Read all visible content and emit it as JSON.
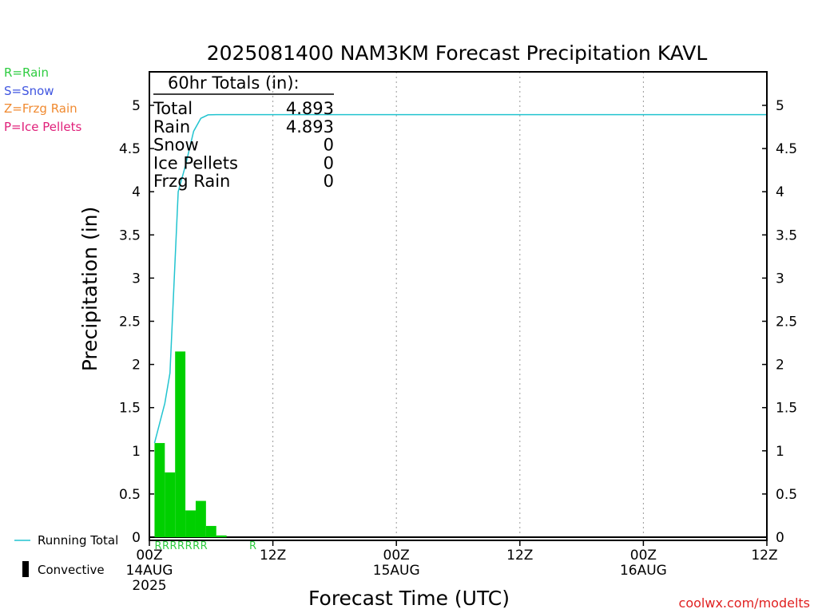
{
  "chart_data": {
    "type": "bar",
    "title": "2025081400 NAM3KM Forecast Precipitation KAVL",
    "xlabel": "Forecast Time (UTC)",
    "ylabel": "Precipitation (in)",
    "ylim": [
      0,
      5.3
    ],
    "xlim_hours": [
      0,
      60
    ],
    "y_ticks": [
      "0",
      "0.5",
      "1",
      "1.5",
      "2",
      "2.5",
      "3",
      "3.5",
      "4",
      "4.5",
      "5"
    ],
    "x_ticks": [
      {
        "hour": 0,
        "label": "00Z",
        "day": "14AUG",
        "year": "2025"
      },
      {
        "hour": 12,
        "label": "12Z",
        "day": "",
        "year": ""
      },
      {
        "hour": 24,
        "label": "00Z",
        "day": "15AUG",
        "year": ""
      },
      {
        "hour": 36,
        "label": "12Z",
        "day": "",
        "year": ""
      },
      {
        "hour": 48,
        "label": "00Z",
        "day": "16AUG",
        "year": ""
      },
      {
        "hour": 60,
        "label": "12Z",
        "day": "",
        "year": ""
      }
    ],
    "grid": "vertical dotted at 12-hour ticks",
    "ptype_legend": [
      {
        "label": "R=Rain",
        "color": "#2ecc40"
      },
      {
        "label": "S=Snow",
        "color": "#4056e0"
      },
      {
        "label": "Z=Frzg Rain",
        "color": "#f08a30"
      },
      {
        "label": "P=Ice Pellets",
        "color": "#e0207a"
      }
    ],
    "bar_color": "#00d000",
    "line_color": "#22c4d0",
    "bars": {
      "hour": [
        1,
        2,
        3,
        4,
        5,
        6,
        7
      ],
      "values": [
        1.09,
        0.75,
        2.15,
        0.31,
        0.42,
        0.13,
        0.02
      ]
    },
    "running_total": {
      "hour": [
        0.5,
        1.5,
        2,
        2.8,
        3.5,
        4.3,
        5,
        5.7,
        6.5,
        60
      ],
      "values": [
        1.09,
        1.55,
        1.9,
        4.0,
        4.3,
        4.7,
        4.85,
        4.89,
        4.893,
        4.893
      ]
    },
    "ptype_marks": {
      "text": "RRRRRRR",
      "extra": "R",
      "extra_hour": 9.7
    },
    "totals_box": {
      "header": "60hr Totals (in):",
      "rows": [
        {
          "label": "Total",
          "value": "4.893"
        },
        {
          "label": "Rain",
          "value": "4.893"
        },
        {
          "label": "Snow",
          "value": "0"
        },
        {
          "label": "Ice Pellets",
          "value": "0"
        },
        {
          "label": "Frzg Rain",
          "value": "0"
        }
      ]
    },
    "series_legend": [
      {
        "name": "Running Total",
        "kind": "line"
      },
      {
        "name": "Convective",
        "kind": "bar"
      }
    ],
    "source": "coolwx.com/modelts"
  }
}
